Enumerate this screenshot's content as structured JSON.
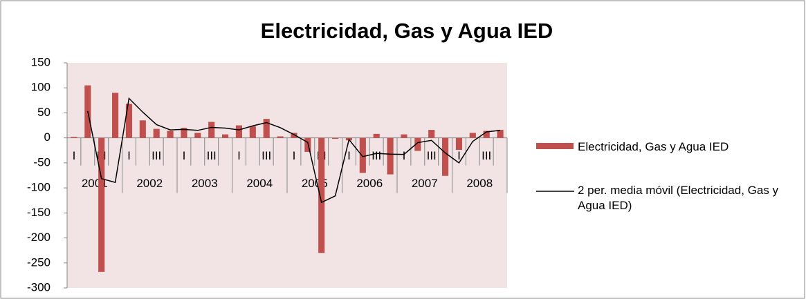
{
  "chart_data": {
    "type": "bar",
    "title": "Electricidad, Gas y Agua IED",
    "categories": [
      "I",
      null,
      "III",
      null,
      "I",
      null,
      "III",
      null,
      "I",
      null,
      "III",
      null,
      "I",
      null,
      "III",
      null,
      "I",
      null,
      "III",
      null,
      "I",
      null,
      "III",
      null,
      "I",
      null,
      "III",
      null,
      "I",
      null,
      "III",
      null
    ],
    "groups": [
      "2001",
      "2002",
      "2003",
      "2004",
      "2005",
      "2006",
      "2007",
      "2008"
    ],
    "series": [
      {
        "name": "Electricidad, Gas y Agua IED",
        "type": "bar",
        "color": "#c0504d",
        "values": [
          2,
          105,
          -268,
          90,
          68,
          35,
          18,
          14,
          20,
          10,
          32,
          7,
          25,
          23,
          38,
          3,
          10,
          -28,
          -230,
          -2,
          -5,
          -70,
          8,
          -73,
          7,
          -26,
          16,
          -76,
          -24,
          10,
          14,
          16
        ]
      },
      {
        "name": "2 per. media móvil (Electricidad, Gas y Agua IED)",
        "type": "line",
        "color": "#000000",
        "values": [
          null,
          53.5,
          -81.5,
          -89,
          79,
          51.5,
          26.5,
          16,
          17,
          15,
          21,
          19.5,
          16,
          24,
          30.5,
          20.5,
          6.5,
          -9,
          -129,
          -116,
          -3.5,
          -37.5,
          -31,
          -32.5,
          -33,
          -9.5,
          -5,
          -30,
          -50,
          -7,
          12,
          15
        ]
      }
    ],
    "ylim": [
      -300,
      150
    ],
    "yticks": [
      -300,
      -250,
      -200,
      -150,
      -100,
      -50,
      0,
      50,
      100,
      150
    ],
    "grid": false,
    "legend": "right"
  }
}
